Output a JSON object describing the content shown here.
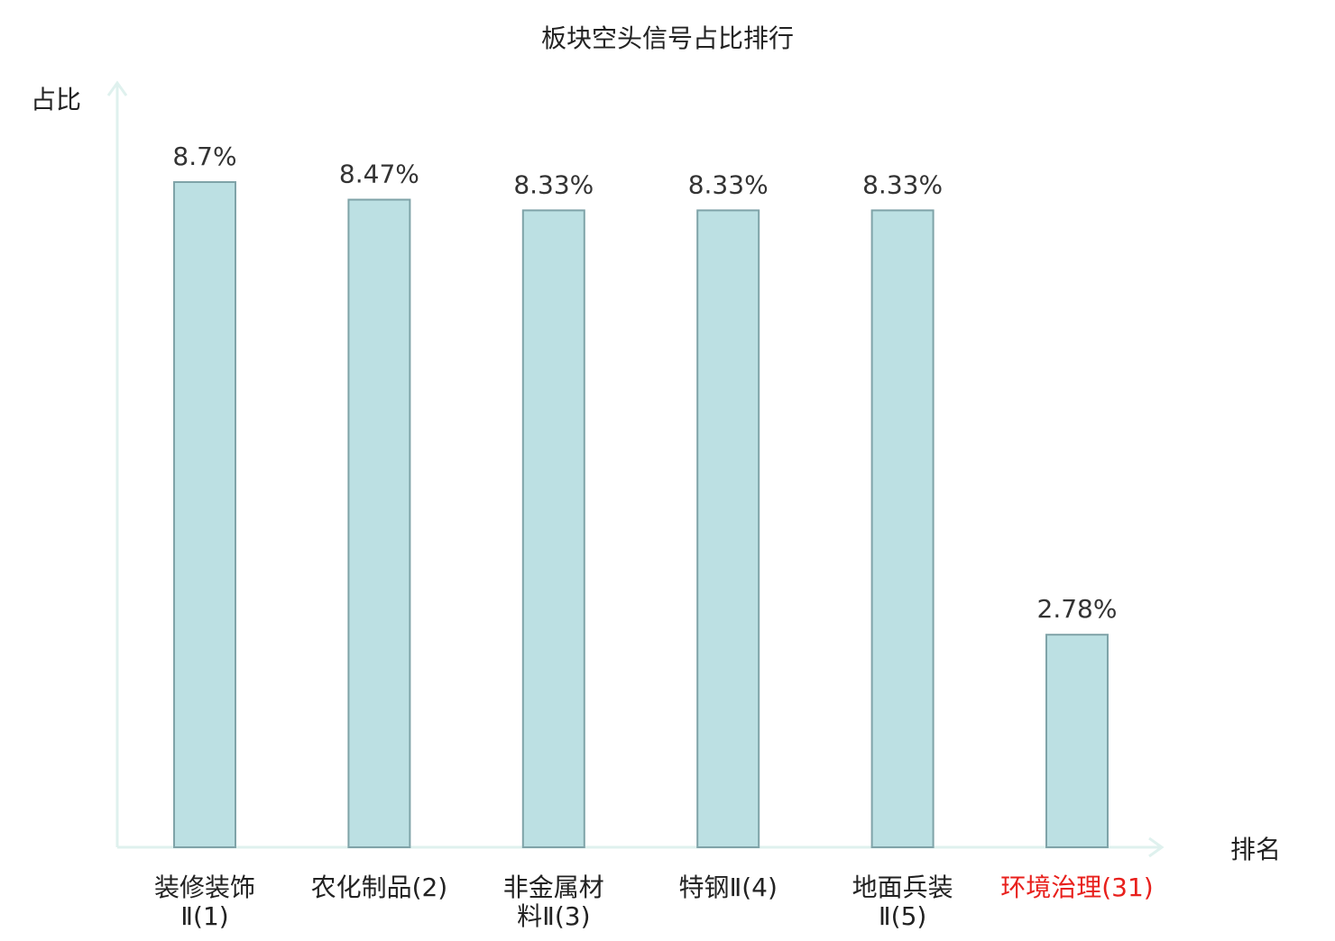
{
  "chart_data": {
    "type": "bar",
    "title": "板块空头信号占比排行",
    "ylabel": "占比",
    "xlabel": "排名",
    "ylim": [
      0,
      10
    ],
    "grid": false,
    "legend": "none",
    "categories": [
      {
        "lines": [
          "装修装饰",
          "Ⅱ(1)"
        ],
        "highlight": false
      },
      {
        "lines": [
          "农化制品(2)"
        ],
        "highlight": false
      },
      {
        "lines": [
          "非金属材",
          "料Ⅱ(3)"
        ],
        "highlight": false
      },
      {
        "lines": [
          "特钢Ⅱ(4)"
        ],
        "highlight": false
      },
      {
        "lines": [
          "地面兵装",
          "Ⅱ(5)"
        ],
        "highlight": false
      },
      {
        "lines": [
          "环境治理(31)"
        ],
        "highlight": true
      }
    ],
    "values": [
      8.7,
      8.47,
      8.33,
      8.33,
      8.33,
      2.78
    ],
    "value_labels": [
      "8.7%",
      "8.47%",
      "8.33%",
      "8.33%",
      "8.33%",
      "2.78%"
    ],
    "colors": {
      "bar_fill": "#bce0e3",
      "bar_stroke": "#7fa3a8",
      "axis": "#dff1ee",
      "text": "#222222",
      "value_text": "#333333",
      "highlight_text": "#e8201c"
    }
  }
}
